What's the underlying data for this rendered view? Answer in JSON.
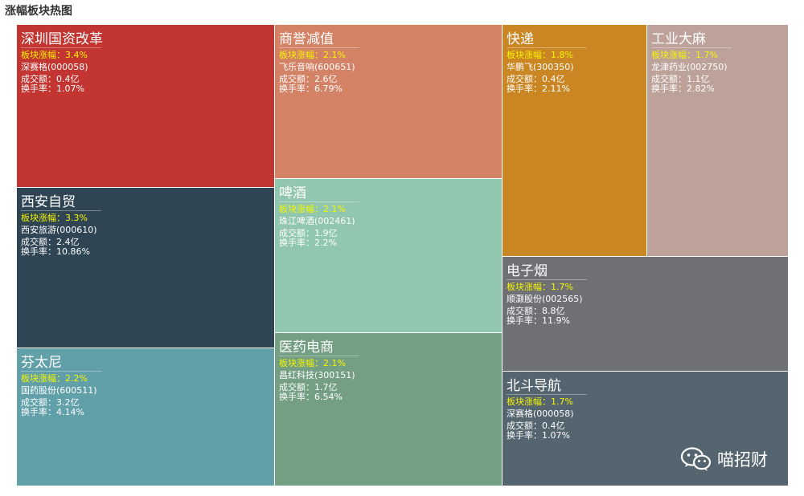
{
  "title": "涨幅板块热图",
  "watermark": {
    "text": "喵招财",
    "icon": "wechat-icon"
  },
  "chart_data": {
    "type": "treemap",
    "title": "涨幅板块热图",
    "labels": {
      "change": "板块涨幅：",
      "volume": "成交额：",
      "turnover": "换手率："
    },
    "sectors": [
      {
        "name": "深圳国资改革",
        "change": "3.4%",
        "stock": "深赛格(000058)",
        "volume": "0.4亿",
        "turnover": "1.07%",
        "color": "#c23531"
      },
      {
        "name": "西安自贸",
        "change": "3.3%",
        "stock": "西安旅游(000610)",
        "volume": "2.4亿",
        "turnover": "10.86%",
        "color": "#2f4554"
      },
      {
        "name": "芬太尼",
        "change": "2.2%",
        "stock": "国药股份(600511)",
        "volume": "3.2亿",
        "turnover": "4.14%",
        "color": "#61a0a8"
      },
      {
        "name": "商誉减值",
        "change": "2.1%",
        "stock": "飞乐音响(600651)",
        "volume": "2.6亿",
        "turnover": "6.79%",
        "color": "#d48265"
      },
      {
        "name": "啤酒",
        "change": "2.1%",
        "stock": "珠江啤酒(002461)",
        "volume": "1.9亿",
        "turnover": "2.2%",
        "color": "#91c7ae"
      },
      {
        "name": "医药电商",
        "change": "2.1%",
        "stock": "昌红科技(300151)",
        "volume": "1.7亿",
        "turnover": "6.54%",
        "color": "#749f83"
      },
      {
        "name": "快递",
        "change": "1.8%",
        "stock": "华鹏飞(300350)",
        "volume": "0.4亿",
        "turnover": "2.11%",
        "color": "#ca8622"
      },
      {
        "name": "工业大麻",
        "change": "1.7%",
        "stock": "龙津药业(002750)",
        "volume": "1.1亿",
        "turnover": "2.82%",
        "color": "#bda29a"
      },
      {
        "name": "电子烟",
        "change": "1.7%",
        "stock": "顺灏股份(002565)",
        "volume": "8.8亿",
        "turnover": "11.9%",
        "color": "#6e7074"
      },
      {
        "name": "北斗导航",
        "change": "1.7%",
        "stock": "深赛格(000058)",
        "volume": "0.4亿",
        "turnover": "1.07%",
        "color": "#546570"
      }
    ]
  }
}
